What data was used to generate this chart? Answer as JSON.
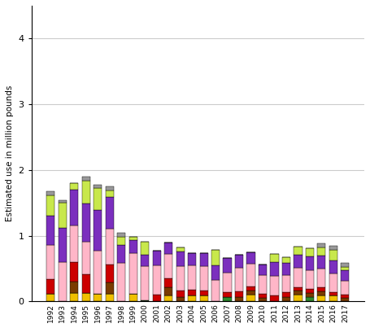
{
  "years": [
    1992,
    1993,
    1994,
    1995,
    1996,
    1997,
    1998,
    1999,
    2000,
    2001,
    2002,
    2003,
    2004,
    2005,
    2006,
    2007,
    2008,
    2009,
    2010,
    2011,
    2012,
    2013,
    2014,
    2015,
    2016,
    2017
  ],
  "crops": {
    "yellow": [
      0.12,
      0.0,
      0.13,
      0.13,
      0.12,
      0.12,
      0.0,
      0.11,
      0.0,
      0.0,
      0.09,
      0.0,
      0.09,
      0.09,
      0.0,
      0.0,
      0.0,
      0.1,
      0.0,
      0.0,
      0.0,
      0.1,
      0.0,
      0.09,
      0.09,
      0.0
    ],
    "darkgreen": [
      0.0,
      0.0,
      0.0,
      0.0,
      0.0,
      0.0,
      0.0,
      0.0,
      0.02,
      0.0,
      0.0,
      0.0,
      0.0,
      0.0,
      0.0,
      0.07,
      0.0,
      0.0,
      0.0,
      0.0,
      0.0,
      0.0,
      0.07,
      0.0,
      0.0,
      0.0
    ],
    "brown": [
      0.0,
      0.0,
      0.17,
      0.0,
      0.0,
      0.17,
      0.0,
      0.0,
      0.0,
      0.0,
      0.12,
      0.07,
      0.0,
      0.0,
      0.0,
      0.0,
      0.06,
      0.06,
      0.05,
      0.0,
      0.07,
      0.06,
      0.06,
      0.06,
      0.0,
      0.05
    ],
    "red": [
      0.22,
      0.0,
      0.3,
      0.28,
      0.0,
      0.27,
      0.0,
      0.0,
      0.0,
      0.1,
      0.14,
      0.09,
      0.09,
      0.07,
      0.0,
      0.07,
      0.09,
      0.07,
      0.07,
      0.09,
      0.07,
      0.06,
      0.06,
      0.06,
      0.05,
      0.05
    ],
    "pink": [
      0.52,
      0.6,
      0.55,
      0.5,
      0.65,
      0.55,
      0.58,
      0.62,
      0.52,
      0.45,
      0.37,
      0.38,
      0.37,
      0.37,
      0.32,
      0.3,
      0.36,
      0.34,
      0.28,
      0.3,
      0.26,
      0.29,
      0.29,
      0.29,
      0.29,
      0.21
    ],
    "purple": [
      0.45,
      0.52,
      0.55,
      0.58,
      0.62,
      0.48,
      0.28,
      0.2,
      0.17,
      0.22,
      0.18,
      0.22,
      0.19,
      0.2,
      0.23,
      0.22,
      0.2,
      0.18,
      0.16,
      0.21,
      0.18,
      0.2,
      0.21,
      0.2,
      0.19,
      0.16
    ],
    "lightgreen": [
      0.3,
      0.38,
      0.1,
      0.35,
      0.33,
      0.1,
      0.12,
      0.05,
      0.2,
      0.0,
      0.0,
      0.06,
      0.0,
      0.0,
      0.23,
      0.0,
      0.0,
      0.0,
      0.0,
      0.12,
      0.09,
      0.12,
      0.12,
      0.12,
      0.16,
      0.05
    ],
    "gray": [
      0.06,
      0.04,
      0.0,
      0.06,
      0.06,
      0.06,
      0.06,
      0.0,
      0.0,
      0.0,
      0.0,
      0.0,
      0.0,
      0.0,
      0.0,
      0.0,
      0.0,
      0.0,
      0.0,
      0.0,
      0.0,
      0.0,
      0.0,
      0.06,
      0.06,
      0.06
    ]
  },
  "colors": {
    "yellow": "#f0c000",
    "darkgreen": "#2d8a2d",
    "brown": "#7a3b00",
    "red": "#cc0000",
    "pink": "#ffb6c8",
    "purple": "#7b2fbe",
    "lightgreen": "#c8e84b",
    "gray": "#999999"
  },
  "ylabel": "Estimated use in million pounds",
  "ylim": [
    0,
    4.5
  ],
  "yticks": [
    0,
    1,
    2,
    3,
    4
  ],
  "bar_edge_color": "#000000",
  "bar_linewidth": 0.3,
  "background_color": "#ffffff",
  "grid_color": "#cccccc"
}
